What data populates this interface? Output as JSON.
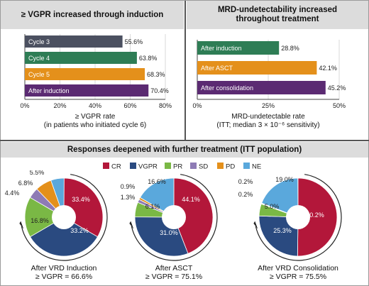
{
  "panels": {
    "vgpr_title": "≥ VGPR increased through induction",
    "mrd_title": "MRD-undetectability increased throughout treatment",
    "responses_title": "Responses deepened with further treatment (ITT population)"
  },
  "colors": {
    "cycle3": "#4b5060",
    "cycle4": "#2e7d55",
    "cycle5": "#e4901b",
    "after_induction": "#5b2a72",
    "mrd": "#2e7d55",
    "after_asct": "#e4901b",
    "after_consolidation": "#5b2a72",
    "CR": "#b3173a",
    "VGPR": "#2a4a80",
    "PR": "#7ab845",
    "SD": "#8e7bb5",
    "PD": "#e4901b",
    "NE": "#5aa8dc"
  },
  "chart_data": [
    {
      "type": "bar",
      "orientation": "horizontal",
      "categories": [
        "Cycle 3",
        "Cycle 4",
        "Cycle 5",
        "After induction"
      ],
      "values": [
        55.6,
        63.8,
        68.3,
        70.4
      ],
      "value_labels": [
        "55.6%",
        "63.8%",
        "68.3%",
        "70.4%"
      ],
      "xlim": [
        0,
        80
      ],
      "xticks": [
        "0%",
        "20%",
        "40%",
        "60%",
        "80%"
      ],
      "xlabel_line1": "≥ VGPR rate",
      "xlabel_line2": "(in patients who initiated cycle 6)"
    },
    {
      "type": "bar",
      "orientation": "horizontal",
      "categories": [
        "After induction",
        "After ASCT",
        "After consolidation"
      ],
      "values": [
        28.8,
        42.1,
        45.2
      ],
      "value_labels": [
        "28.8%",
        "42.1%",
        "45.2%"
      ],
      "xlim": [
        0,
        50
      ],
      "xticks": [
        "0%",
        "25%",
        "50%"
      ],
      "xlabel_line1": "MRD-undetectable rate",
      "xlabel_line2": "(ITT; median 3 × 10⁻⁶ sensitivity)"
    },
    {
      "type": "pie",
      "legend": [
        "CR",
        "VGPR",
        "PR",
        "SD",
        "PD",
        "NE"
      ],
      "pies": [
        {
          "caption_line1": "After VRD Induction",
          "caption_line2": "≥ VGPR = 66.6%",
          "slices": [
            {
              "category": "CR",
              "value": 33.4,
              "label": "33.4%"
            },
            {
              "category": "VGPR",
              "value": 33.2,
              "label": "33.2%"
            },
            {
              "category": "PR",
              "value": 16.8,
              "label": "16.8%"
            },
            {
              "category": "SD",
              "value": 4.4,
              "label": "4.4%"
            },
            {
              "category": "PD",
              "value": 6.8,
              "label": "6.8%"
            },
            {
              "category": "NE",
              "value": 5.5,
              "label": "5.5%"
            }
          ]
        },
        {
          "caption_line1": "After ASCT",
          "caption_line2": "≥ VGPR = 75.1%",
          "slices": [
            {
              "category": "CR",
              "value": 44.1,
              "label": "44.1%"
            },
            {
              "category": "VGPR",
              "value": 31.0,
              "label": "31.0%"
            },
            {
              "category": "PR",
              "value": 6.1,
              "label": "6.1%"
            },
            {
              "category": "SD",
              "value": 1.3,
              "label": "1.3%"
            },
            {
              "category": "PD",
              "value": 0.9,
              "label": "0.9%"
            },
            {
              "category": "NE",
              "value": 16.6,
              "label": "16.6%"
            }
          ]
        },
        {
          "caption_line1": "After VRD Consolidation",
          "caption_line2": "≥ VGPR = 75.5%",
          "slices": [
            {
              "category": "CR",
              "value": 50.2,
              "label": "50.2%"
            },
            {
              "category": "VGPR",
              "value": 25.3,
              "label": "25.3%"
            },
            {
              "category": "PR",
              "value": 5.0,
              "label": "5.0%"
            },
            {
              "category": "SD",
              "value": 0.2,
              "label": "0.2%"
            },
            {
              "category": "PD",
              "value": 0.2,
              "label": "0.2%"
            },
            {
              "category": "NE",
              "value": 19.0,
              "label": "19.0%"
            }
          ]
        }
      ]
    }
  ]
}
